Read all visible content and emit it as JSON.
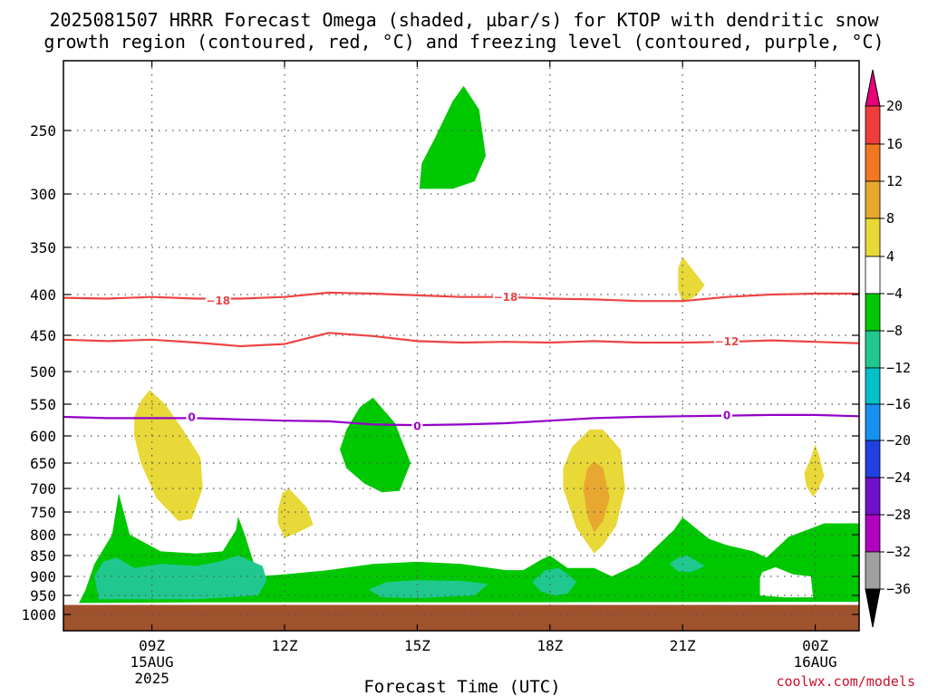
{
  "title_line1": "2025081507 HRRR Forecast Omega (shaded, µbar/s) for KTOP with dendritic snow",
  "title_line2": "growth region (contoured, red, °C) and freezing level (contoured, purple, °C)",
  "credit": "coolwx.com/models",
  "chart_data": {
    "type": "time-height contour",
    "xlabel": "Forecast Time (UTC)",
    "x_ticks": [
      {
        "hour": 9,
        "label": "09Z",
        "sub1": "15AUG",
        "sub2": "2025"
      },
      {
        "hour": 12,
        "label": "12Z",
        "sub1": "",
        "sub2": ""
      },
      {
        "hour": 15,
        "label": "15Z",
        "sub1": "",
        "sub2": ""
      },
      {
        "hour": 18,
        "label": "18Z",
        "sub1": "",
        "sub2": ""
      },
      {
        "hour": 21,
        "label": "21Z",
        "sub1": "",
        "sub2": ""
      },
      {
        "hour": 24,
        "label": "00Z",
        "sub1": "16AUG",
        "sub2": ""
      }
    ],
    "x_range_hours": [
      7,
      25
    ],
    "y_unit": "hPa",
    "y_ticks": [
      250,
      300,
      350,
      400,
      450,
      500,
      550,
      600,
      650,
      700,
      750,
      800,
      850,
      900,
      950,
      1000
    ],
    "y_range_hPa": [
      200,
      1020
    ],
    "surface_level_hPa": 975,
    "colorbar": {
      "ticks": [
        "20",
        "16",
        "12",
        "8",
        "4",
        "−4",
        "−8",
        "−12",
        "−16",
        "−20",
        "−24",
        "−28",
        "−32",
        "−36"
      ],
      "bins": [
        {
          "range": ">20",
          "color": "#e8007a"
        },
        {
          "range": "16 to 20",
          "color": "#f03c3c"
        },
        {
          "range": "12 to 16",
          "color": "#f07820"
        },
        {
          "range": "8 to 12",
          "color": "#e8a830"
        },
        {
          "range": "4 to 8",
          "color": "#e8d838"
        },
        {
          "range": "-4 to 4",
          "color": "#ffffff"
        },
        {
          "range": "-8 to -4",
          "color": "#00c800"
        },
        {
          "range": "-12 to -8",
          "color": "#20c890"
        },
        {
          "range": "-16 to -12",
          "color": "#00c0c8"
        },
        {
          "range": "-20 to -16",
          "color": "#1890f0"
        },
        {
          "range": "-24 to -20",
          "color": "#2040e0"
        },
        {
          "range": "-28 to -24",
          "color": "#7010c8"
        },
        {
          "range": "-32 to -28",
          "color": "#b000c0"
        },
        {
          "range": "-36 to -32",
          "color": "#a0a0a0"
        },
        {
          "range": "<-36",
          "color": "#000000"
        }
      ]
    },
    "contours": [
      {
        "name": "-18",
        "label": "−18",
        "color": "#ee4444",
        "points": [
          [
            7,
            404
          ],
          [
            8,
            405
          ],
          [
            9,
            403
          ],
          [
            10,
            405
          ],
          [
            11,
            405
          ],
          [
            12,
            403
          ],
          [
            13,
            398
          ],
          [
            14,
            399
          ],
          [
            15,
            401
          ],
          [
            16,
            403
          ],
          [
            17,
            403
          ],
          [
            18,
            405
          ],
          [
            19,
            406
          ],
          [
            20,
            408
          ],
          [
            21,
            408
          ],
          [
            22,
            403
          ],
          [
            23,
            400
          ],
          [
            24,
            399
          ],
          [
            25,
            399
          ]
        ],
        "label_at": [
          [
            10.5,
            407
          ],
          [
            17.0,
            403
          ]
        ]
      },
      {
        "name": "-12",
        "label": "−12",
        "color": "#ee4444",
        "points": [
          [
            7,
            456
          ],
          [
            8,
            458
          ],
          [
            9,
            456
          ],
          [
            10,
            460
          ],
          [
            11,
            465
          ],
          [
            12,
            462
          ],
          [
            13,
            447
          ],
          [
            14,
            451
          ],
          [
            15,
            458
          ],
          [
            16,
            460
          ],
          [
            17,
            459
          ],
          [
            18,
            460
          ],
          [
            19,
            458
          ],
          [
            20,
            460
          ],
          [
            21,
            460
          ],
          [
            22,
            459
          ],
          [
            23,
            457
          ],
          [
            24,
            459
          ],
          [
            25,
            461
          ]
        ],
        "label_at": [
          [
            22.0,
            458
          ]
        ]
      },
      {
        "name": "0",
        "label": "0",
        "color": "#9400c8",
        "points": [
          [
            7,
            570
          ],
          [
            8,
            572
          ],
          [
            9,
            572
          ],
          [
            10,
            572
          ],
          [
            11,
            574
          ],
          [
            12,
            576
          ],
          [
            13,
            577
          ],
          [
            14,
            582
          ],
          [
            15,
            583
          ],
          [
            16,
            582
          ],
          [
            17,
            580
          ],
          [
            18,
            576
          ],
          [
            19,
            572
          ],
          [
            20,
            570
          ],
          [
            21,
            569
          ],
          [
            22,
            568
          ],
          [
            23,
            567
          ],
          [
            24,
            567
          ],
          [
            25,
            569
          ]
        ],
        "label_at": [
          [
            9.9,
            570
          ],
          [
            15.0,
            584
          ],
          [
            22.0,
            567
          ]
        ]
      }
    ],
    "shaded_regions": [
      {
        "name": "green-layer",
        "bin": "-8 to -4",
        "color": "#00c800",
        "points": [
          [
            7.35,
            970
          ],
          [
            7.5,
            935
          ],
          [
            7.7,
            870
          ],
          [
            8.1,
            800
          ],
          [
            8.25,
            710
          ],
          [
            8.5,
            800
          ],
          [
            9.2,
            840
          ],
          [
            10,
            845
          ],
          [
            10.6,
            840
          ],
          [
            10.9,
            790
          ],
          [
            10.95,
            760
          ],
          [
            11.1,
            800
          ],
          [
            11.4,
            900
          ],
          [
            12,
            895
          ],
          [
            13,
            885
          ],
          [
            14,
            870
          ],
          [
            15,
            865
          ],
          [
            16,
            870
          ],
          [
            17,
            885
          ],
          [
            17.4,
            885
          ],
          [
            17.8,
            860
          ],
          [
            18,
            850
          ],
          [
            18.4,
            880
          ],
          [
            19,
            880
          ],
          [
            19.4,
            900
          ],
          [
            20,
            870
          ],
          [
            20.8,
            790
          ],
          [
            21.0,
            762
          ],
          [
            21.6,
            810
          ],
          [
            22,
            825
          ],
          [
            22.6,
            840
          ],
          [
            22.9,
            855
          ],
          [
            23.4,
            805
          ],
          [
            23.8,
            790
          ],
          [
            24.2,
            775
          ],
          [
            25,
            775
          ],
          [
            25,
            967
          ],
          [
            18,
            968
          ],
          [
            10,
            968
          ],
          [
            7.35,
            970
          ]
        ]
      },
      {
        "name": "green-blob-upper",
        "bin": "-8 to -4",
        "color": "#00c800",
        "points": [
          [
            15.05,
            296
          ],
          [
            15.1,
            276
          ],
          [
            15.4,
            256
          ],
          [
            15.8,
            229
          ],
          [
            16.05,
            218
          ],
          [
            16.4,
            235
          ],
          [
            16.55,
            270
          ],
          [
            16.3,
            290
          ],
          [
            15.8,
            296
          ],
          [
            15.05,
            296
          ]
        ]
      },
      {
        "name": "green-blob-mid",
        "bin": "-8 to -4",
        "color": "#00c800",
        "points": [
          [
            13.25,
            625
          ],
          [
            13.4,
            590
          ],
          [
            13.7,
            555
          ],
          [
            14.0,
            540
          ],
          [
            14.5,
            580
          ],
          [
            14.85,
            650
          ],
          [
            14.6,
            705
          ],
          [
            14.2,
            708
          ],
          [
            13.8,
            690
          ],
          [
            13.4,
            660
          ],
          [
            13.25,
            625
          ]
        ]
      },
      {
        "name": "teal-left",
        "bin": "-12 to -8",
        "color": "#20c890",
        "points": [
          [
            7.8,
            960
          ],
          [
            7.7,
            900
          ],
          [
            7.9,
            865
          ],
          [
            8.2,
            855
          ],
          [
            8.6,
            880
          ],
          [
            9.2,
            870
          ],
          [
            10,
            875
          ],
          [
            10.5,
            865
          ],
          [
            10.95,
            850
          ],
          [
            11.5,
            875
          ],
          [
            11.6,
            910
          ],
          [
            11.4,
            950
          ],
          [
            10,
            960
          ],
          [
            7.8,
            960
          ]
        ]
      },
      {
        "name": "teal-center",
        "bin": "-12 to -8",
        "color": "#20c890",
        "points": [
          [
            13.9,
            935
          ],
          [
            14.3,
            915
          ],
          [
            15,
            910
          ],
          [
            16,
            912
          ],
          [
            16.6,
            920
          ],
          [
            16.3,
            950
          ],
          [
            15,
            957
          ],
          [
            14.2,
            955
          ],
          [
            13.9,
            935
          ]
        ]
      },
      {
        "name": "teal-18z",
        "bin": "-12 to -8",
        "color": "#20c890",
        "points": [
          [
            17.6,
            915
          ],
          [
            17.9,
            885
          ],
          [
            18.2,
            880
          ],
          [
            18.4,
            895
          ],
          [
            18.6,
            915
          ],
          [
            18.4,
            945
          ],
          [
            18.1,
            950
          ],
          [
            17.8,
            940
          ],
          [
            17.6,
            915
          ]
        ]
      },
      {
        "name": "teal-21z",
        "bin": "-12 to -8",
        "color": "#20c890",
        "points": [
          [
            20.7,
            870
          ],
          [
            20.9,
            855
          ],
          [
            21.1,
            850
          ],
          [
            21.3,
            862
          ],
          [
            21.5,
            875
          ],
          [
            21.2,
            890
          ],
          [
            20.9,
            888
          ],
          [
            20.7,
            870
          ]
        ]
      },
      {
        "name": "white-gap",
        "bin": "-4 to 4",
        "color": "#ffffff",
        "points": [
          [
            22.75,
            905
          ],
          [
            22.8,
            890
          ],
          [
            23.1,
            878
          ],
          [
            23.5,
            895
          ],
          [
            23.9,
            900
          ],
          [
            23.95,
            955
          ],
          [
            23.3,
            955
          ],
          [
            22.75,
            950
          ],
          [
            22.75,
            905
          ]
        ]
      },
      {
        "name": "yellow-left",
        "bin": "4 to 8",
        "color": "#e8d838",
        "points": [
          [
            8.6,
            570
          ],
          [
            8.75,
            545
          ],
          [
            8.95,
            528
          ],
          [
            9.3,
            550
          ],
          [
            9.7,
            590
          ],
          [
            10.1,
            640
          ],
          [
            10.15,
            700
          ],
          [
            9.9,
            765
          ],
          [
            9.6,
            770
          ],
          [
            9.1,
            720
          ],
          [
            8.75,
            650
          ],
          [
            8.6,
            600
          ],
          [
            8.6,
            570
          ]
        ]
      },
      {
        "name": "yellow-12z",
        "bin": "4 to 8",
        "color": "#e8d838",
        "points": [
          [
            11.85,
            745
          ],
          [
            11.95,
            710
          ],
          [
            12.1,
            700
          ],
          [
            12.5,
            740
          ],
          [
            12.65,
            778
          ],
          [
            12.3,
            795
          ],
          [
            12.0,
            808
          ],
          [
            11.85,
            775
          ],
          [
            11.85,
            745
          ]
        ]
      },
      {
        "name": "yellow-19z",
        "bin": "4 to 8",
        "color": "#e8d838",
        "points": [
          [
            18.3,
            660
          ],
          [
            18.5,
            620
          ],
          [
            18.9,
            590
          ],
          [
            19.2,
            590
          ],
          [
            19.6,
            625
          ],
          [
            19.7,
            700
          ],
          [
            19.5,
            780
          ],
          [
            19.2,
            825
          ],
          [
            19.0,
            845
          ],
          [
            18.6,
            785
          ],
          [
            18.3,
            700
          ],
          [
            18.3,
            660
          ]
        ]
      },
      {
        "name": "orange-19z",
        "bin": "8 to 12",
        "color": "#e8a830",
        "points": [
          [
            18.75,
            700
          ],
          [
            18.85,
            660
          ],
          [
            19.0,
            647
          ],
          [
            19.2,
            660
          ],
          [
            19.35,
            720
          ],
          [
            19.2,
            770
          ],
          [
            19.0,
            795
          ],
          [
            18.85,
            760
          ],
          [
            18.75,
            700
          ]
        ]
      },
      {
        "name": "yellow-21z",
        "bin": "4 to 8",
        "color": "#e8d838",
        "points": [
          [
            20.9,
            372
          ],
          [
            21.0,
            360
          ],
          [
            21.2,
            372
          ],
          [
            21.5,
            390
          ],
          [
            21.3,
            402
          ],
          [
            21.0,
            410
          ],
          [
            20.9,
            395
          ],
          [
            20.9,
            372
          ]
        ]
      },
      {
        "name": "yellow-right",
        "bin": "4 to 8",
        "color": "#e8d838",
        "points": [
          [
            23.75,
            670
          ],
          [
            23.9,
            640
          ],
          [
            24.0,
            615
          ],
          [
            24.1,
            640
          ],
          [
            24.2,
            675
          ],
          [
            24.05,
            705
          ],
          [
            23.95,
            718
          ],
          [
            23.8,
            695
          ],
          [
            23.75,
            670
          ]
        ]
      }
    ]
  }
}
